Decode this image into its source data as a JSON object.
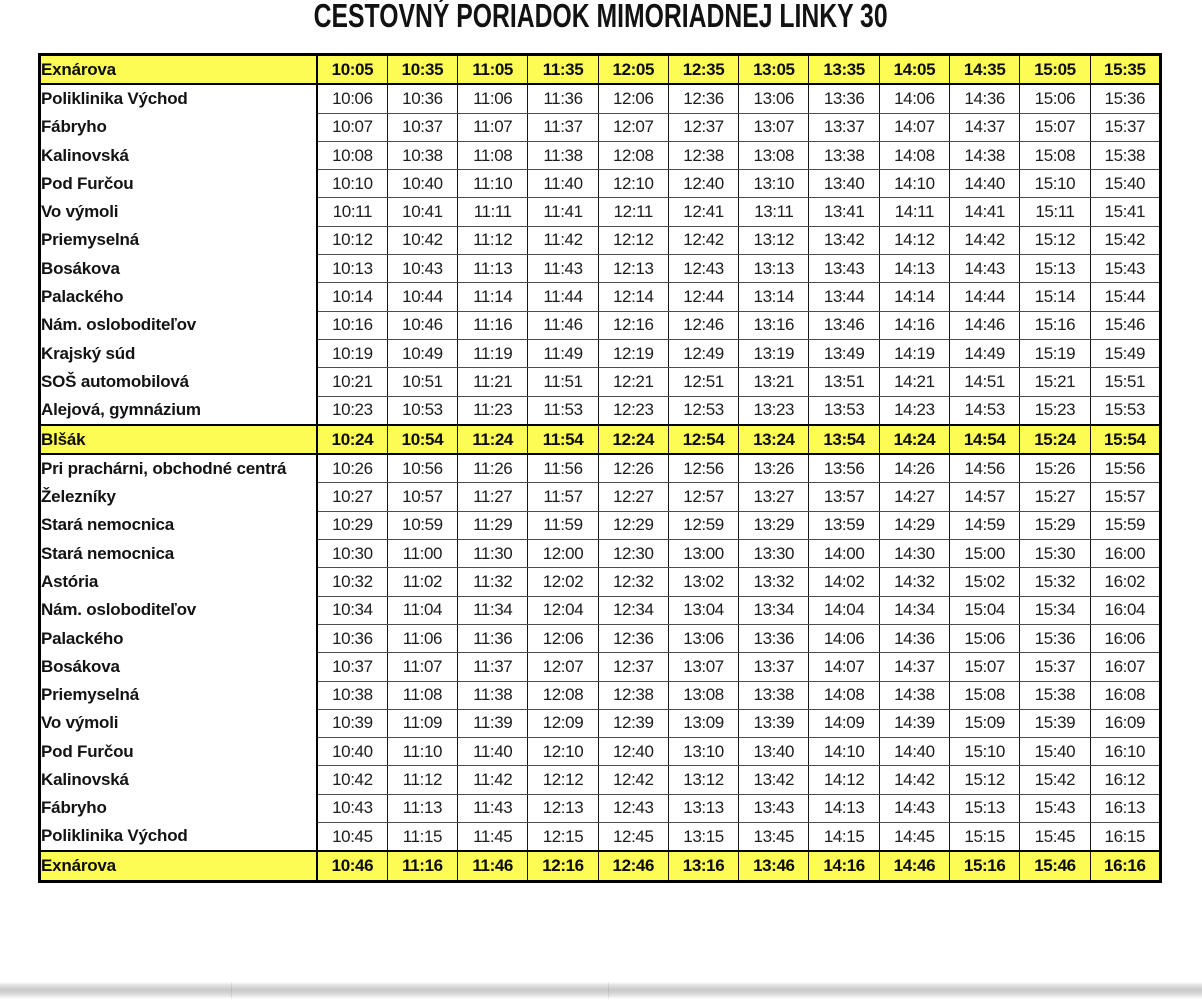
{
  "title": "CESTOVNÝ PORIADOK MIMORIADNEJ LINKY 30",
  "colors": {
    "highlight_row": "#FCFC55",
    "border": "#000000",
    "grid_line": "#4D4D4D",
    "text": "#131313"
  },
  "timetable": {
    "trips_count": 12,
    "headway_minutes": 30,
    "rows": [
      {
        "stop": "Exnárova",
        "highlight": true,
        "times": [
          "10:05",
          "10:35",
          "11:05",
          "11:35",
          "12:05",
          "12:35",
          "13:05",
          "13:35",
          "14:05",
          "14:35",
          "15:05",
          "15:35"
        ]
      },
      {
        "stop": "Poliklinika Východ",
        "highlight": false,
        "times": [
          "10:06",
          "10:36",
          "11:06",
          "11:36",
          "12:06",
          "12:36",
          "13:06",
          "13:36",
          "14:06",
          "14:36",
          "15:06",
          "15:36"
        ]
      },
      {
        "stop": "Fábryho",
        "highlight": false,
        "times": [
          "10:07",
          "10:37",
          "11:07",
          "11:37",
          "12:07",
          "12:37",
          "13:07",
          "13:37",
          "14:07",
          "14:37",
          "15:07",
          "15:37"
        ]
      },
      {
        "stop": "Kalinovská",
        "highlight": false,
        "times": [
          "10:08",
          "10:38",
          "11:08",
          "11:38",
          "12:08",
          "12:38",
          "13:08",
          "13:38",
          "14:08",
          "14:38",
          "15:08",
          "15:38"
        ]
      },
      {
        "stop": "Pod Furčou",
        "highlight": false,
        "times": [
          "10:10",
          "10:40",
          "11:10",
          "11:40",
          "12:10",
          "12:40",
          "13:10",
          "13:40",
          "14:10",
          "14:40",
          "15:10",
          "15:40"
        ]
      },
      {
        "stop": "Vo výmoli",
        "highlight": false,
        "times": [
          "10:11",
          "10:41",
          "11:11",
          "11:41",
          "12:11",
          "12:41",
          "13:11",
          "13:41",
          "14:11",
          "14:41",
          "15:11",
          "15:41"
        ]
      },
      {
        "stop": "Priemyselná",
        "highlight": false,
        "times": [
          "10:12",
          "10:42",
          "11:12",
          "11:42",
          "12:12",
          "12:42",
          "13:12",
          "13:42",
          "14:12",
          "14:42",
          "15:12",
          "15:42"
        ]
      },
      {
        "stop": "Bosákova",
        "highlight": false,
        "times": [
          "10:13",
          "10:43",
          "11:13",
          "11:43",
          "12:13",
          "12:43",
          "13:13",
          "13:43",
          "14:13",
          "14:43",
          "15:13",
          "15:43"
        ]
      },
      {
        "stop": "Palackého",
        "highlight": false,
        "times": [
          "10:14",
          "10:44",
          "11:14",
          "11:44",
          "12:14",
          "12:44",
          "13:14",
          "13:44",
          "14:14",
          "14:44",
          "15:14",
          "15:44"
        ]
      },
      {
        "stop": "Nám. osloboditeľov",
        "highlight": false,
        "times": [
          "10:16",
          "10:46",
          "11:16",
          "11:46",
          "12:16",
          "12:46",
          "13:16",
          "13:46",
          "14:16",
          "14:46",
          "15:16",
          "15:46"
        ]
      },
      {
        "stop": "Krajský súd",
        "highlight": false,
        "times": [
          "10:19",
          "10:49",
          "11:19",
          "11:49",
          "12:19",
          "12:49",
          "13:19",
          "13:49",
          "14:19",
          "14:49",
          "15:19",
          "15:49"
        ]
      },
      {
        "stop": "SOŠ automobilová",
        "highlight": false,
        "times": [
          "10:21",
          "10:51",
          "11:21",
          "11:51",
          "12:21",
          "12:51",
          "13:21",
          "13:51",
          "14:21",
          "14:51",
          "15:21",
          "15:51"
        ]
      },
      {
        "stop": "Alejová, gymnázium",
        "highlight": false,
        "times": [
          "10:23",
          "10:53",
          "11:23",
          "11:53",
          "12:23",
          "12:53",
          "13:23",
          "13:53",
          "14:23",
          "14:53",
          "15:23",
          "15:53"
        ]
      },
      {
        "stop": "Blšák",
        "highlight": true,
        "times": [
          "10:24",
          "10:54",
          "11:24",
          "11:54",
          "12:24",
          "12:54",
          "13:24",
          "13:54",
          "14:24",
          "14:54",
          "15:24",
          "15:54"
        ]
      },
      {
        "stop": "Pri prachárni, obchodné centrá",
        "highlight": false,
        "times": [
          "10:26",
          "10:56",
          "11:26",
          "11:56",
          "12:26",
          "12:56",
          "13:26",
          "13:56",
          "14:26",
          "14:56",
          "15:26",
          "15:56"
        ]
      },
      {
        "stop": "Železníky",
        "highlight": false,
        "times": [
          "10:27",
          "10:57",
          "11:27",
          "11:57",
          "12:27",
          "12:57",
          "13:27",
          "13:57",
          "14:27",
          "14:57",
          "15:27",
          "15:57"
        ]
      },
      {
        "stop": "Stará nemocnica",
        "highlight": false,
        "times": [
          "10:29",
          "10:59",
          "11:29",
          "11:59",
          "12:29",
          "12:59",
          "13:29",
          "13:59",
          "14:29",
          "14:59",
          "15:29",
          "15:59"
        ]
      },
      {
        "stop": "Stará nemocnica",
        "highlight": false,
        "times": [
          "10:30",
          "11:00",
          "11:30",
          "12:00",
          "12:30",
          "13:00",
          "13:30",
          "14:00",
          "14:30",
          "15:00",
          "15:30",
          "16:00"
        ]
      },
      {
        "stop": "Astória",
        "highlight": false,
        "times": [
          "10:32",
          "11:02",
          "11:32",
          "12:02",
          "12:32",
          "13:02",
          "13:32",
          "14:02",
          "14:32",
          "15:02",
          "15:32",
          "16:02"
        ]
      },
      {
        "stop": "Nám. osloboditeľov",
        "highlight": false,
        "times": [
          "10:34",
          "11:04",
          "11:34",
          "12:04",
          "12:34",
          "13:04",
          "13:34",
          "14:04",
          "14:34",
          "15:04",
          "15:34",
          "16:04"
        ]
      },
      {
        "stop": "Palackého",
        "highlight": false,
        "times": [
          "10:36",
          "11:06",
          "11:36",
          "12:06",
          "12:36",
          "13:06",
          "13:36",
          "14:06",
          "14:36",
          "15:06",
          "15:36",
          "16:06"
        ]
      },
      {
        "stop": "Bosákova",
        "highlight": false,
        "times": [
          "10:37",
          "11:07",
          "11:37",
          "12:07",
          "12:37",
          "13:07",
          "13:37",
          "14:07",
          "14:37",
          "15:07",
          "15:37",
          "16:07"
        ]
      },
      {
        "stop": "Priemyselná",
        "highlight": false,
        "times": [
          "10:38",
          "11:08",
          "11:38",
          "12:08",
          "12:38",
          "13:08",
          "13:38",
          "14:08",
          "14:38",
          "15:08",
          "15:38",
          "16:08"
        ]
      },
      {
        "stop": "Vo výmoli",
        "highlight": false,
        "times": [
          "10:39",
          "11:09",
          "11:39",
          "12:09",
          "12:39",
          "13:09",
          "13:39",
          "14:09",
          "14:39",
          "15:09",
          "15:39",
          "16:09"
        ]
      },
      {
        "stop": "Pod Furčou",
        "highlight": false,
        "times": [
          "10:40",
          "11:10",
          "11:40",
          "12:10",
          "12:40",
          "13:10",
          "13:40",
          "14:10",
          "14:40",
          "15:10",
          "15:40",
          "16:10"
        ]
      },
      {
        "stop": "Kalinovská",
        "highlight": false,
        "times": [
          "10:42",
          "11:12",
          "11:42",
          "12:12",
          "12:42",
          "13:12",
          "13:42",
          "14:12",
          "14:42",
          "15:12",
          "15:42",
          "16:12"
        ]
      },
      {
        "stop": "Fábryho",
        "highlight": false,
        "times": [
          "10:43",
          "11:13",
          "11:43",
          "12:13",
          "12:43",
          "13:13",
          "13:43",
          "14:13",
          "14:43",
          "15:13",
          "15:43",
          "16:13"
        ]
      },
      {
        "stop": "Poliklinika Východ",
        "highlight": false,
        "times": [
          "10:45",
          "11:15",
          "11:45",
          "12:15",
          "12:45",
          "13:15",
          "13:45",
          "14:15",
          "14:45",
          "15:15",
          "15:45",
          "16:15"
        ]
      },
      {
        "stop": "Exnárova",
        "highlight": true,
        "times": [
          "10:46",
          "11:16",
          "11:46",
          "12:16",
          "12:46",
          "13:16",
          "13:46",
          "14:16",
          "14:46",
          "15:16",
          "15:46",
          "16:16"
        ]
      }
    ]
  }
}
